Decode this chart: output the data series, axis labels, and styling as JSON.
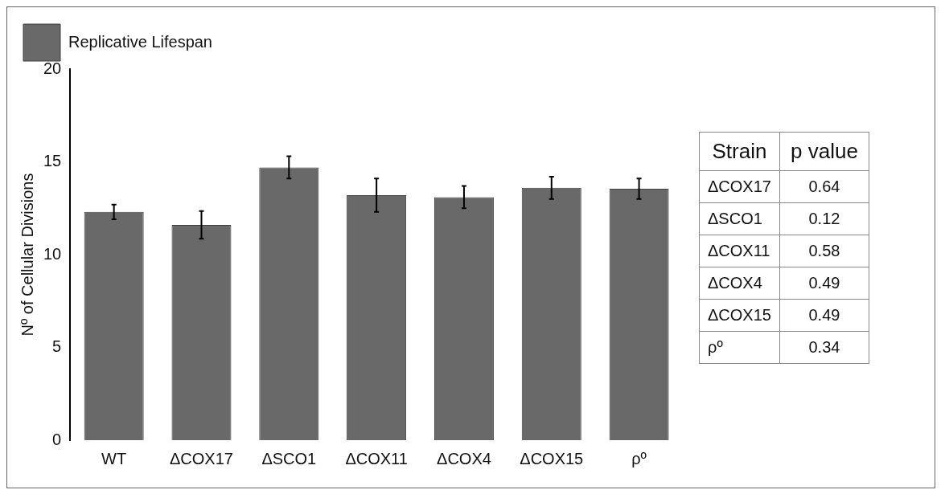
{
  "chart_data": {
    "type": "bar",
    "ylabel": "Nº of Cellular Divisions",
    "categories": [
      "WT",
      "ΔCOX17",
      "ΔSCO1",
      "ΔCOX11",
      "ΔCOX4",
      "ΔCOX15",
      "ρº"
    ],
    "series": [
      {
        "name": "Replicative Lifespan",
        "color": "#696969",
        "values": [
          12.3,
          11.6,
          14.7,
          13.2,
          13.1,
          13.6,
          13.55
        ],
        "errors": [
          0.4,
          0.75,
          0.6,
          0.9,
          0.6,
          0.6,
          0.55
        ]
      }
    ],
    "ylim": [
      0,
      20
    ],
    "yticks": [
      0,
      5,
      10,
      15,
      20
    ],
    "grid": false,
    "legend": "top left",
    "annotations": [
      "Strain",
      "p value",
      "ΔCOX17",
      "0.64",
      "ΔSCO1",
      "0.12",
      "ΔCOX11",
      "0.58",
      "ΔCOX4",
      "0.49",
      "ΔCOX15",
      "0.49",
      "ρº",
      "0.34"
    ]
  }
}
